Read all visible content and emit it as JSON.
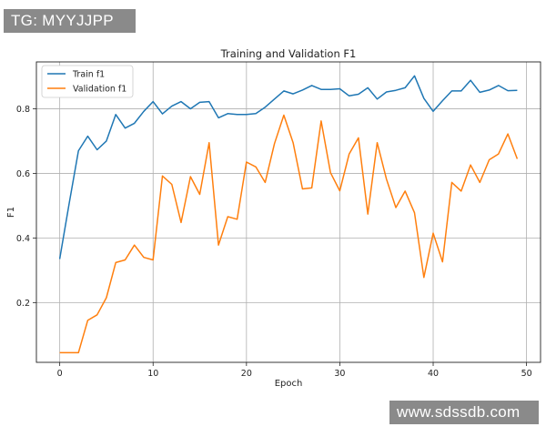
{
  "watermarks": {
    "top_left": "TG: MYYJJPP",
    "bottom_right": "www.sdssdb.com"
  },
  "colors": {
    "train": "#1f77b4",
    "validation": "#ff7f0e",
    "grid": "#b0b0b0"
  },
  "chart_data": {
    "type": "line",
    "title": "Training and Validation F1",
    "xlabel": "Epoch",
    "ylabel": "F1",
    "xlim": [
      -2.5,
      51.5
    ],
    "ylim": [
      0.015,
      0.945
    ],
    "xticks": [
      0,
      10,
      20,
      30,
      40,
      50
    ],
    "yticks": [
      0.2,
      0.4,
      0.6,
      0.8
    ],
    "xtick_labels": [
      "0",
      "10",
      "20",
      "30",
      "40",
      "50"
    ],
    "ytick_labels": [
      "0.2",
      "0.4",
      "0.6",
      "0.8"
    ],
    "grid": true,
    "legend_position": "top-left",
    "x": [
      0,
      1,
      2,
      3,
      4,
      5,
      6,
      7,
      8,
      9,
      10,
      11,
      12,
      13,
      14,
      15,
      16,
      17,
      18,
      19,
      20,
      21,
      22,
      23,
      24,
      25,
      26,
      27,
      28,
      29,
      30,
      31,
      32,
      33,
      34,
      35,
      36,
      37,
      38,
      39,
      40,
      41,
      42,
      43,
      44,
      45,
      46,
      47,
      48,
      49
    ],
    "series": [
      {
        "name": "Train f1",
        "values": [
          0.335,
          0.505,
          0.67,
          0.715,
          0.673,
          0.7,
          0.782,
          0.74,
          0.755,
          0.792,
          0.822,
          0.784,
          0.808,
          0.822,
          0.8,
          0.82,
          0.822,
          0.772,
          0.785,
          0.782,
          0.782,
          0.785,
          0.805,
          0.83,
          0.855,
          0.846,
          0.858,
          0.872,
          0.86,
          0.86,
          0.862,
          0.84,
          0.845,
          0.865,
          0.83,
          0.852,
          0.857,
          0.865,
          0.902,
          0.832,
          0.792,
          0.825,
          0.855,
          0.855,
          0.888,
          0.851,
          0.858,
          0.872,
          0.856,
          0.857
        ]
      },
      {
        "name": "Validation f1",
        "values": [
          0.045,
          0.045,
          0.045,
          0.145,
          0.162,
          0.215,
          0.324,
          0.332,
          0.378,
          0.34,
          0.332,
          0.592,
          0.566,
          0.448,
          0.59,
          0.535,
          0.695,
          0.378,
          0.466,
          0.458,
          0.635,
          0.62,
          0.572,
          0.692,
          0.78,
          0.695,
          0.552,
          0.555,
          0.762,
          0.602,
          0.546,
          0.66,
          0.71,
          0.474,
          0.695,
          0.582,
          0.494,
          0.545,
          0.478,
          0.278,
          0.415,
          0.326,
          0.572,
          0.545,
          0.626,
          0.572,
          0.642,
          0.66,
          0.722,
          0.645
        ]
      }
    ]
  }
}
